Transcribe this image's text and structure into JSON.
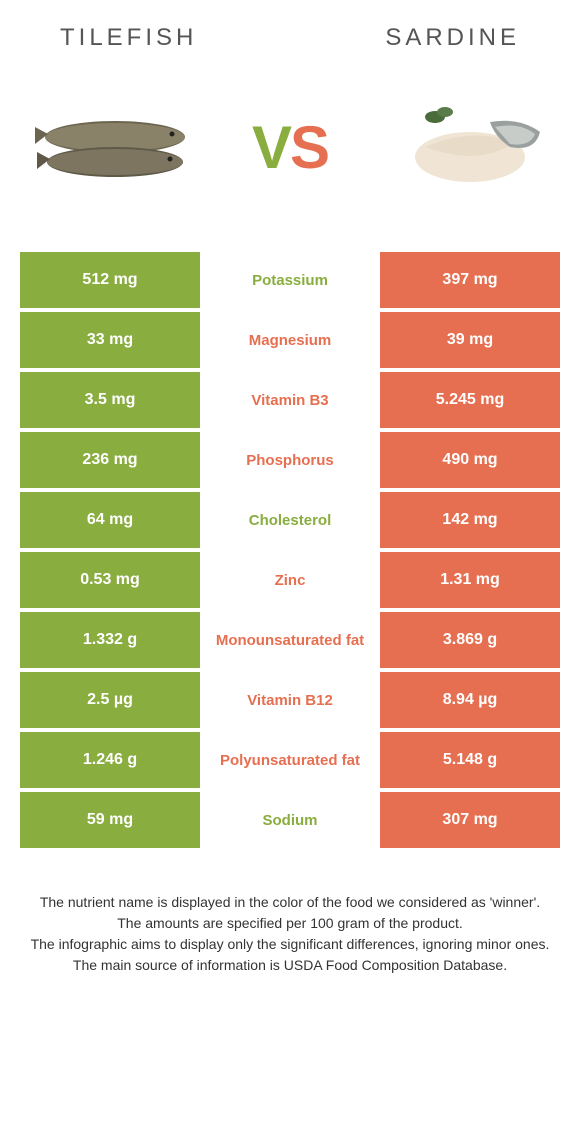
{
  "colors": {
    "left": "#8aad3f",
    "right": "#e76f51",
    "text": "#333333",
    "white": "#ffffff"
  },
  "header": {
    "left_title": "TILEFISH",
    "right_title": "SARDINE"
  },
  "vs": {
    "v": "V",
    "s": "S"
  },
  "rows": [
    {
      "left": "512 mg",
      "label": "Potassium",
      "right": "397 mg",
      "winner": "left"
    },
    {
      "left": "33 mg",
      "label": "Magnesium",
      "right": "39 mg",
      "winner": "right"
    },
    {
      "left": "3.5 mg",
      "label": "Vitamin B3",
      "right": "5.245 mg",
      "winner": "right"
    },
    {
      "left": "236 mg",
      "label": "Phosphorus",
      "right": "490 mg",
      "winner": "right"
    },
    {
      "left": "64 mg",
      "label": "Cholesterol",
      "right": "142 mg",
      "winner": "left"
    },
    {
      "left": "0.53 mg",
      "label": "Zinc",
      "right": "1.31 mg",
      "winner": "right"
    },
    {
      "left": "1.332 g",
      "label": "Monounsaturated fat",
      "right": "3.869 g",
      "winner": "right"
    },
    {
      "left": "2.5 µg",
      "label": "Vitamin B12",
      "right": "8.94 µg",
      "winner": "right"
    },
    {
      "left": "1.246 g",
      "label": "Polyunsaturated fat",
      "right": "5.148 g",
      "winner": "right"
    },
    {
      "left": "59 mg",
      "label": "Sodium",
      "right": "307 mg",
      "winner": "left"
    }
  ],
  "footer": {
    "line1": "The nutrient name is displayed in the color of the food we considered as 'winner'.",
    "line2": "The amounts are specified per 100 gram of the product.",
    "line3": "The infographic aims to display only the significant differences, ignoring minor ones.",
    "line4": "The main source of information is USDA Food Composition Database."
  }
}
